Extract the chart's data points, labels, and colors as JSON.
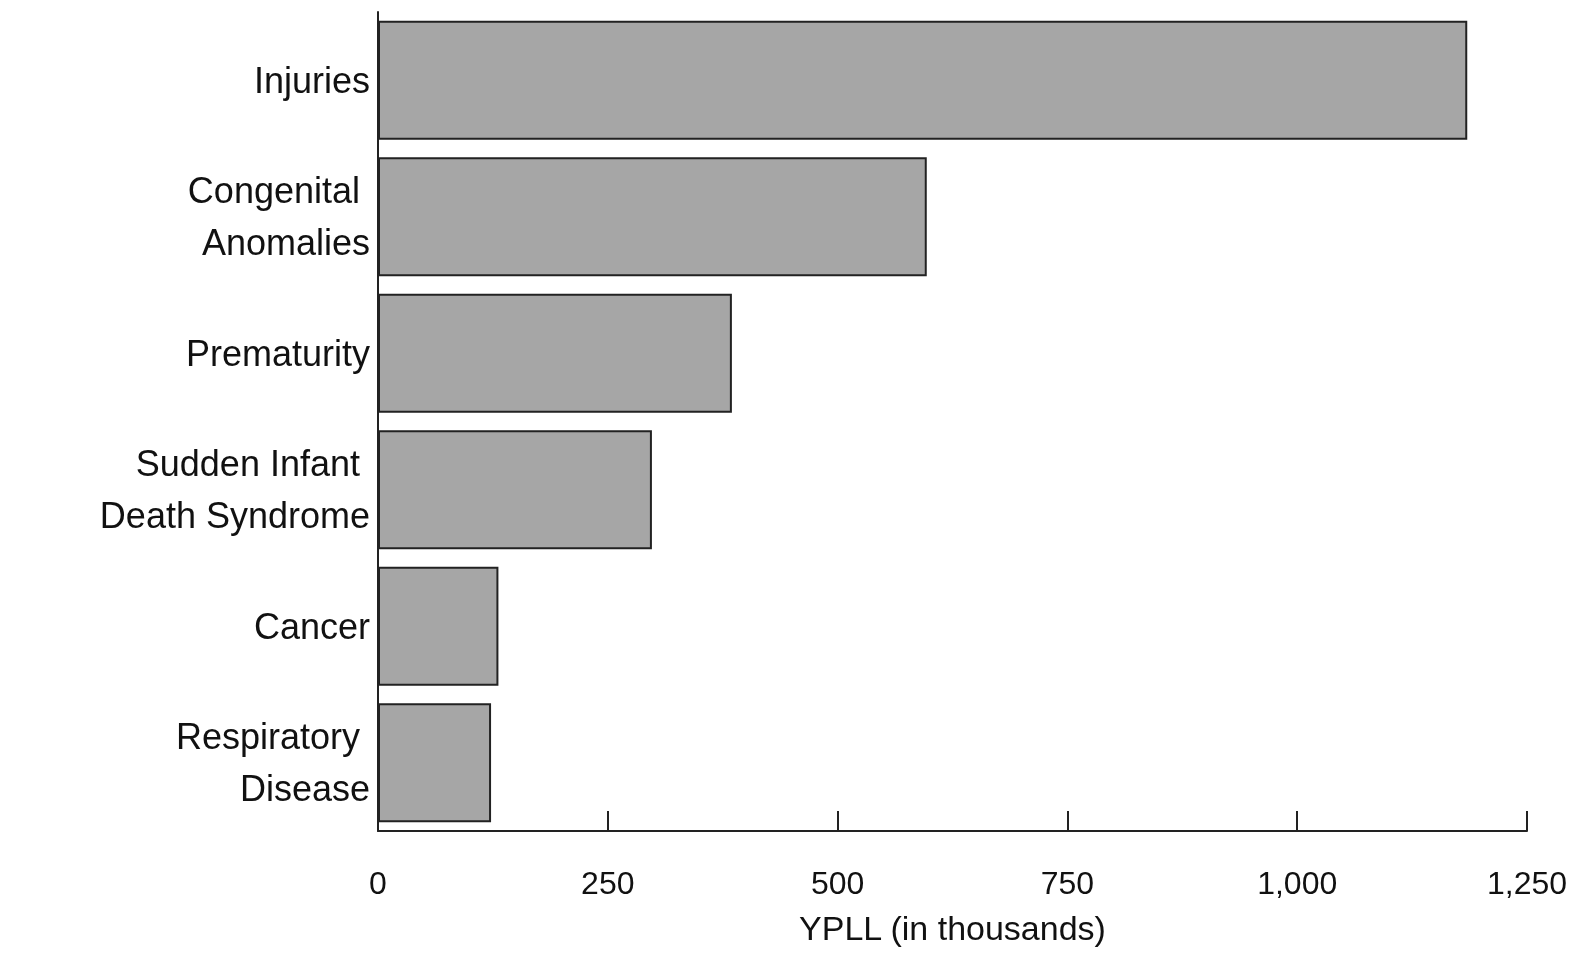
{
  "chart_data": {
    "type": "bar",
    "orientation": "horizontal",
    "xlabel": "YPLL (in thousands)",
    "categories": [
      "Injuries",
      "Congenital Anomalies",
      "Prematurity",
      "Sudden Infant Death Syndrome",
      "Cancer",
      "Respiratory Disease"
    ],
    "values": [
      1185,
      597,
      385,
      298,
      131,
      123
    ],
    "color": "#a6a6a6",
    "xlim": [
      0,
      1250
    ],
    "xticks": [
      0,
      {
        "value": 250,
        "label": "250"
      },
      {
        "value": 500,
        "label": "500"
      },
      {
        "value": 750,
        "label": "750"
      },
      {
        "value": 1000,
        "label": "1,000"
      },
      {
        "value": 1250,
        "label": "1,250"
      }
    ],
    "grid": false
  }
}
